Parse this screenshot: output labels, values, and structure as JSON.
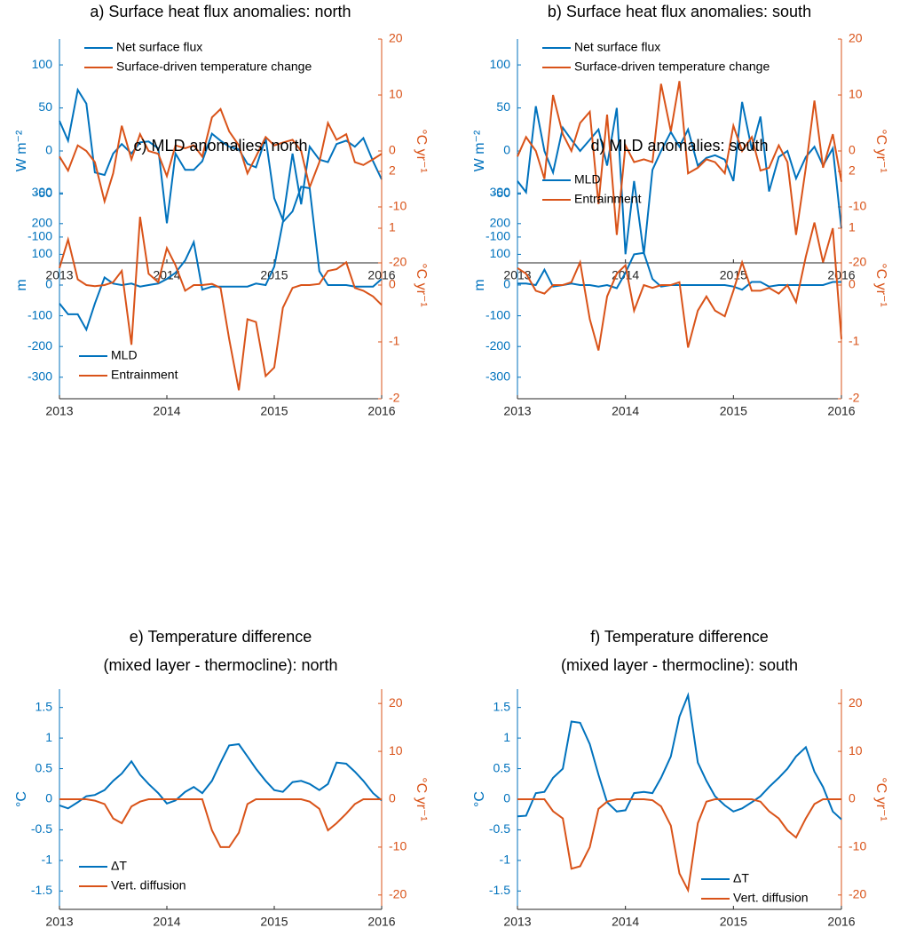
{
  "chart_data": [
    {
      "type": "line",
      "title": [
        "a) Surface heat flux anomalies: north"
      ],
      "ylabel": "W m⁻²",
      "y2label": "°C yr⁻¹",
      "legend": "upper left",
      "x": [
        2013,
        2013.08,
        2013.17,
        2013.25,
        2013.33,
        2013.42,
        2013.5,
        2013.58,
        2013.67,
        2013.75,
        2013.83,
        2013.92,
        2014,
        2014.08,
        2014.17,
        2014.25,
        2014.33,
        2014.42,
        2014.5,
        2014.58,
        2014.67,
        2014.75,
        2014.83,
        2014.92,
        2015,
        2015.08,
        2015.17,
        2015.25,
        2015.33,
        2015.42,
        2015.5,
        2015.58,
        2015.67,
        2015.75,
        2015.83,
        2015.92,
        2016
      ],
      "xlim": [
        2013,
        2016
      ],
      "xticks": [
        2013,
        2014,
        2015,
        2016
      ],
      "ylim": [
        -130,
        130
      ],
      "yticks": [
        -100,
        -50,
        0,
        50,
        100
      ],
      "y2lim": [
        -20,
        20
      ],
      "y2ticks": [
        -20,
        -10,
        0,
        10,
        20
      ],
      "series": [
        {
          "name": "Net surface flux",
          "color": "#0072bd",
          "values": [
            35,
            12,
            71,
            55,
            -25,
            -28,
            -3,
            8,
            -3,
            10,
            11,
            3,
            -84,
            -3,
            -22,
            -22,
            -12,
            20,
            12,
            5,
            2,
            -15,
            -19,
            15,
            -55,
            -80,
            -3,
            -62,
            5,
            -10,
            -13,
            8,
            12,
            5,
            15,
            -12,
            -33
          ]
        },
        {
          "name": "Surface-driven temperature change",
          "color": "#d95319",
          "axis": "y2",
          "values": [
            -1,
            -3.5,
            1,
            0,
            -2,
            -9,
            -4,
            4.5,
            -1.5,
            3,
            0,
            -0.5,
            -4.5,
            1,
            0.5,
            1,
            -1,
            6,
            7.5,
            3.5,
            1,
            -4,
            -1,
            2.5,
            1,
            1.5,
            2,
            0,
            -6.5,
            -2,
            5,
            2,
            3,
            -2,
            -2.5,
            -1.5,
            -0.5
          ]
        }
      ]
    },
    {
      "type": "line",
      "title": [
        "b) Surface heat flux anomalies: south"
      ],
      "ylabel": "W m⁻²",
      "y2label": "°C yr⁻¹",
      "legend": "upper left",
      "x": [
        2013,
        2013.08,
        2013.17,
        2013.25,
        2013.33,
        2013.42,
        2013.5,
        2013.58,
        2013.67,
        2013.75,
        2013.83,
        2013.92,
        2014,
        2014.08,
        2014.17,
        2014.25,
        2014.33,
        2014.42,
        2014.5,
        2014.58,
        2014.67,
        2014.75,
        2014.83,
        2014.92,
        2015,
        2015.08,
        2015.17,
        2015.25,
        2015.33,
        2015.42,
        2015.5,
        2015.58,
        2015.67,
        2015.75,
        2015.83,
        2015.92,
        2016
      ],
      "xlim": [
        2013,
        2016
      ],
      "xticks": [
        2013,
        2014,
        2015,
        2016
      ],
      "ylim": [
        -130,
        130
      ],
      "yticks": [
        -100,
        -50,
        0,
        50,
        100
      ],
      "y2lim": [
        -20,
        20
      ],
      "y2ticks": [
        -20,
        -10,
        0,
        10,
        20
      ],
      "series": [
        {
          "name": "Net surface flux",
          "color": "#0072bd",
          "values": [
            -35,
            -48,
            52,
            0,
            -25,
            27,
            13,
            0,
            13,
            25,
            -17,
            50,
            -120,
            -35,
            -120,
            -22,
            0,
            22,
            5,
            25,
            -17,
            -8,
            -5,
            -10,
            -35,
            57,
            2,
            40,
            -47,
            -7,
            0,
            -32,
            -7,
            5,
            -17,
            3,
            -90
          ]
        },
        {
          "name": "Surface-driven temperature change",
          "color": "#d95319",
          "axis": "y2",
          "values": [
            -1,
            2.5,
            0,
            -5,
            10,
            3,
            0,
            5,
            7,
            -9.5,
            6.5,
            -15,
            1,
            -2,
            -1.5,
            -2,
            12,
            3.5,
            12.5,
            -4,
            -3,
            -1.5,
            -2,
            -4,
            4.5,
            0,
            2.5,
            -3.5,
            -3,
            1,
            -2,
            -15,
            -3,
            9,
            -3,
            3,
            -5.5
          ]
        }
      ]
    },
    {
      "type": "line",
      "title": [
        "c) MLD anomalies: north"
      ],
      "ylabel": "m",
      "y2label": "°C yr⁻¹",
      "legend": "lower left",
      "x": [
        2013,
        2013.08,
        2013.17,
        2013.25,
        2013.33,
        2013.42,
        2013.5,
        2013.58,
        2013.67,
        2013.75,
        2013.83,
        2013.92,
        2014,
        2014.08,
        2014.17,
        2014.25,
        2014.33,
        2014.42,
        2014.5,
        2014.58,
        2014.67,
        2014.75,
        2014.83,
        2014.92,
        2015,
        2015.08,
        2015.17,
        2015.25,
        2015.33,
        2015.42,
        2015.5,
        2015.58,
        2015.67,
        2015.75,
        2015.83,
        2015.92,
        2016
      ],
      "xlim": [
        2013,
        2016
      ],
      "xticks": [
        2013,
        2014,
        2015,
        2016
      ],
      "ylim": [
        -370,
        370
      ],
      "yticks": [
        -300,
        -200,
        -100,
        0,
        100,
        200,
        300
      ],
      "y2lim": [
        -2,
        2
      ],
      "y2ticks": [
        -2,
        -1,
        0,
        1,
        2
      ],
      "series": [
        {
          "name": "MLD",
          "color": "#0072bd",
          "values": [
            -60,
            -95,
            -95,
            -145,
            -60,
            25,
            5,
            0,
            5,
            -5,
            0,
            5,
            20,
            40,
            80,
            140,
            -15,
            -5,
            -5,
            -5,
            -5,
            -5,
            5,
            0,
            60,
            205,
            240,
            320,
            315,
            45,
            0,
            0,
            0,
            -5,
            -5,
            -5,
            20
          ]
        },
        {
          "name": "Entrainment",
          "color": "#d95319",
          "axis": "y2",
          "values": [
            0.3,
            0.8,
            0.1,
            0,
            -0.02,
            0,
            0.05,
            0.25,
            -1.05,
            1.2,
            0.2,
            0.05,
            0.65,
            0.35,
            -0.1,
            0,
            0,
            0.02,
            -0.05,
            -0.95,
            -1.85,
            -0.6,
            -0.65,
            -1.6,
            -1.45,
            -0.4,
            -0.05,
            0,
            0,
            0.02,
            0.25,
            0.28,
            0.4,
            -0.05,
            -0.1,
            -0.2,
            -0.35
          ]
        }
      ]
    },
    {
      "type": "line",
      "title": [
        "d) MLD anomalies: south"
      ],
      "ylabel": "m",
      "y2label": "°C yr⁻¹",
      "legend": "upper left",
      "x": [
        2013,
        2013.08,
        2013.17,
        2013.25,
        2013.33,
        2013.42,
        2013.5,
        2013.58,
        2013.67,
        2013.75,
        2013.83,
        2013.92,
        2014,
        2014.08,
        2014.17,
        2014.25,
        2014.33,
        2014.42,
        2014.5,
        2014.58,
        2014.67,
        2014.75,
        2014.83,
        2014.92,
        2015,
        2015.08,
        2015.17,
        2015.25,
        2015.33,
        2015.42,
        2015.5,
        2015.58,
        2015.67,
        2015.75,
        2015.83,
        2015.92,
        2016
      ],
      "xlim": [
        2013,
        2016
      ],
      "xticks": [
        2013,
        2014,
        2015,
        2016
      ],
      "ylim": [
        -370,
        370
      ],
      "yticks": [
        -300,
        -200,
        -100,
        0,
        100,
        200,
        300
      ],
      "y2lim": [
        -2,
        2
      ],
      "y2ticks": [
        -2,
        -1,
        0,
        1,
        2
      ],
      "series": [
        {
          "name": "MLD",
          "color": "#0072bd",
          "values": [
            5,
            5,
            0,
            50,
            -5,
            0,
            5,
            0,
            0,
            -5,
            0,
            -10,
            40,
            100,
            105,
            20,
            -5,
            0,
            0,
            0,
            0,
            0,
            0,
            0,
            -5,
            -15,
            10,
            10,
            -5,
            0,
            0,
            0,
            0,
            0,
            0,
            10,
            10
          ]
        },
        {
          "name": "Entrainment",
          "color": "#d95319",
          "axis": "y2",
          "values": [
            0.3,
            0.2,
            -0.1,
            -0.15,
            0,
            0,
            0.05,
            0.4,
            -0.6,
            -1.15,
            -0.2,
            0.2,
            0.35,
            -0.45,
            0,
            -0.05,
            0,
            0,
            0.05,
            -1.1,
            -0.45,
            -0.2,
            -0.45,
            -0.55,
            -0.1,
            0.4,
            -0.1,
            -0.1,
            -0.05,
            -0.15,
            0,
            -0.3,
            0.5,
            1.1,
            0.4,
            1.0,
            -0.95
          ]
        }
      ]
    },
    {
      "type": "line",
      "title": [
        "e) Temperature difference",
        "(mixed layer - thermocline): north"
      ],
      "ylabel": "°C",
      "y2label": "°C yr⁻¹",
      "legend": "lower left",
      "x": [
        2013,
        2013.08,
        2013.17,
        2013.25,
        2013.33,
        2013.42,
        2013.5,
        2013.58,
        2013.67,
        2013.75,
        2013.83,
        2013.92,
        2014,
        2014.08,
        2014.17,
        2014.25,
        2014.33,
        2014.42,
        2014.5,
        2014.58,
        2014.67,
        2014.75,
        2014.83,
        2014.92,
        2015,
        2015.08,
        2015.17,
        2015.25,
        2015.33,
        2015.42,
        2015.5,
        2015.58,
        2015.67,
        2015.75,
        2015.83,
        2015.92,
        2016
      ],
      "xlim": [
        2013,
        2016
      ],
      "xticks": [
        2013,
        2014,
        2015,
        2016
      ],
      "ylim": [
        -1.8,
        1.8
      ],
      "yticks": [
        -1.5,
        -1,
        -0.5,
        0,
        0.5,
        1,
        1.5
      ],
      "y2lim": [
        -23,
        23
      ],
      "y2ticks": [
        -20,
        -10,
        0,
        10,
        20
      ],
      "series": [
        {
          "name": "ΔT",
          "color": "#0072bd",
          "values": [
            -0.1,
            -0.15,
            -0.05,
            0.05,
            0.07,
            0.15,
            0.3,
            0.42,
            0.62,
            0.4,
            0.25,
            0.1,
            -0.07,
            -0.02,
            0.12,
            0.2,
            0.1,
            0.3,
            0.6,
            0.88,
            0.9,
            0.7,
            0.5,
            0.3,
            0.15,
            0.12,
            0.28,
            0.3,
            0.25,
            0.15,
            0.25,
            0.6,
            0.58,
            0.45,
            0.3,
            0.1,
            -0.02
          ]
        },
        {
          "name": "Vert. diffusion",
          "color": "#d95319",
          "axis": "y2",
          "values": [
            0,
            0,
            0,
            0,
            -0.3,
            -1,
            -4,
            -5,
            -1.5,
            -0.5,
            0,
            0,
            0,
            0,
            0,
            0,
            0,
            -6.5,
            -10,
            -10,
            -7,
            -1,
            0,
            0,
            0,
            0,
            0,
            0,
            -0.5,
            -2,
            -6.5,
            -5,
            -3,
            -1,
            0,
            0,
            0
          ]
        }
      ]
    },
    {
      "type": "line",
      "title": [
        "f) Temperature difference",
        "(mixed layer - thermocline): south"
      ],
      "ylabel": "°C",
      "y2label": "°C yr⁻¹",
      "legend": "lower right",
      "x": [
        2013,
        2013.08,
        2013.17,
        2013.25,
        2013.33,
        2013.42,
        2013.5,
        2013.58,
        2013.67,
        2013.75,
        2013.83,
        2013.92,
        2014,
        2014.08,
        2014.17,
        2014.25,
        2014.33,
        2014.42,
        2014.5,
        2014.58,
        2014.67,
        2014.75,
        2014.83,
        2014.92,
        2015,
        2015.08,
        2015.17,
        2015.25,
        2015.33,
        2015.42,
        2015.5,
        2015.58,
        2015.67,
        2015.75,
        2015.83,
        2015.92,
        2016
      ],
      "xlim": [
        2013,
        2016
      ],
      "xticks": [
        2013,
        2014,
        2015,
        2016
      ],
      "ylim": [
        -1.8,
        1.8
      ],
      "yticks": [
        -1.5,
        -1,
        -0.5,
        0,
        0.5,
        1,
        1.5
      ],
      "y2lim": [
        -23,
        23
      ],
      "y2ticks": [
        -20,
        -10,
        0,
        10,
        20
      ],
      "series": [
        {
          "name": "ΔT",
          "color": "#0072bd",
          "values": [
            -0.28,
            -0.27,
            0.1,
            0.12,
            0.35,
            0.5,
            1.27,
            1.25,
            0.9,
            0.4,
            -0.05,
            -0.2,
            -0.18,
            0.1,
            0.12,
            0.1,
            0.35,
            0.7,
            1.35,
            1.7,
            0.6,
            0.3,
            0.05,
            -0.1,
            -0.2,
            -0.15,
            -0.05,
            0.05,
            0.2,
            0.35,
            0.5,
            0.7,
            0.85,
            0.45,
            0.2,
            -0.2,
            -0.33
          ]
        },
        {
          "name": "Vert. diffusion",
          "color": "#d95319",
          "axis": "y2",
          "values": [
            0,
            0,
            0,
            0,
            -2.5,
            -4,
            -14.5,
            -14,
            -10,
            -2,
            -0.5,
            0,
            0,
            0,
            0,
            -0.2,
            -1.5,
            -5.5,
            -15.5,
            -19,
            -5,
            -0.5,
            0,
            0,
            0,
            0,
            0,
            -0.5,
            -2.5,
            -4,
            -6.5,
            -8,
            -4,
            -1,
            0,
            0,
            0
          ]
        }
      ]
    }
  ]
}
